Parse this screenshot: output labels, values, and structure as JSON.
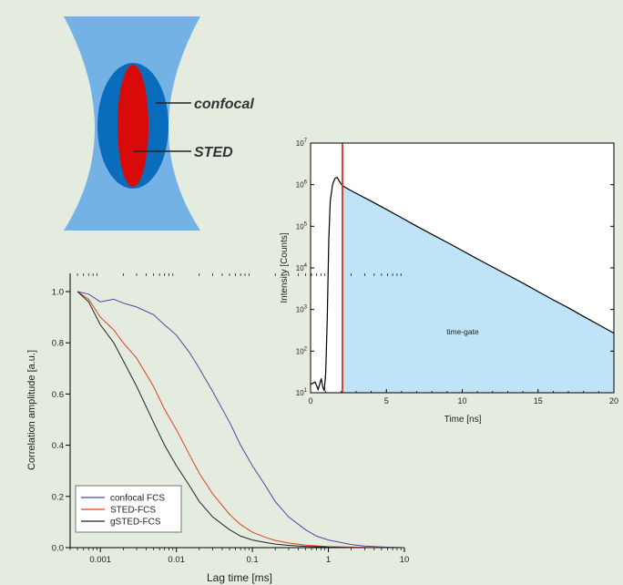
{
  "colors": {
    "background": "#e4ece0",
    "beam_outer": "#74b2e6",
    "beam_confocal": "#0a6cbc",
    "beam_sted": "#d80a0a",
    "gate_fill": "#bfe3f7",
    "gate_line": "#e0301e"
  },
  "diagram": {
    "labels": {
      "confocal": "confocal",
      "sted": "STED"
    }
  },
  "chart_data": [
    {
      "type": "area",
      "title": "",
      "xlabel": "Time [ns]",
      "ylabel": "Intensity [Counts]",
      "xlim": [
        0,
        20
      ],
      "ylim": [
        10,
        10000000
      ],
      "y_scale": "log",
      "x_ticks": [
        "0",
        "5",
        "10",
        "15",
        "20"
      ],
      "y_ticks": [
        {
          "base": "10",
          "exp": "1"
        },
        {
          "base": "10",
          "exp": "2"
        },
        {
          "base": "10",
          "exp": "3"
        },
        {
          "base": "10",
          "exp": "4"
        },
        {
          "base": "10",
          "exp": "5"
        },
        {
          "base": "10",
          "exp": "6"
        },
        {
          "base": "10",
          "exp": "7"
        }
      ],
      "annotation": "time-gate",
      "gate_start": 2.1,
      "gate_color": "#e0301e",
      "series": [
        {
          "color": "#000000",
          "x": [
            0,
            0.3,
            0.5,
            0.7,
            0.8,
            0.9,
            1.0,
            1.1,
            1.2,
            1.3,
            1.45,
            1.6,
            1.75,
            1.9,
            2.05,
            2.2,
            2.5,
            3,
            4,
            5,
            6,
            7,
            8,
            9,
            10,
            11,
            12,
            13,
            14,
            15,
            16,
            17,
            18,
            19,
            20
          ],
          "y": [
            16,
            18,
            12,
            22,
            14,
            11,
            30,
            600,
            50000,
            400000,
            1000000,
            1400000,
            1500000,
            1200000,
            1000000,
            900000,
            780000,
            620000,
            400000,
            255000,
            160000,
            100000,
            64000,
            41000,
            26000,
            16500,
            10500,
            6700,
            4300,
            2700,
            1700,
            1100,
            680,
            430,
            270
          ]
        }
      ],
      "grid": false,
      "legend": "none"
    },
    {
      "type": "line",
      "title": "",
      "xlabel": "Lag time [ms]",
      "ylabel": "Correlation amplitude [a.u.]",
      "x_scale": "log",
      "xlim": [
        0.0004,
        10
      ],
      "ylim": [
        0,
        1.0
      ],
      "x_ticks": [
        "0.001",
        "0.01",
        "0.1",
        "1",
        "10"
      ],
      "y_ticks": [
        "0.0",
        "0.2",
        "0.4",
        "0.6",
        "0.8",
        "1.0"
      ],
      "legend": "bottom-left",
      "grid": false,
      "series": [
        {
          "name": "confocal FCS",
          "color": "#4a4aa0",
          "x": [
            0.0005,
            0.0007,
            0.001,
            0.0015,
            0.002,
            0.003,
            0.005,
            0.007,
            0.01,
            0.015,
            0.02,
            0.03,
            0.05,
            0.07,
            0.1,
            0.15,
            0.2,
            0.3,
            0.5,
            0.7,
            1,
            2,
            3,
            5,
            10
          ],
          "y": [
            1.0,
            0.99,
            0.96,
            0.97,
            0.955,
            0.94,
            0.91,
            0.87,
            0.83,
            0.76,
            0.7,
            0.61,
            0.49,
            0.4,
            0.32,
            0.24,
            0.18,
            0.12,
            0.07,
            0.045,
            0.03,
            0.012,
            0.006,
            0.003,
            0.0
          ]
        },
        {
          "name": "STED-FCS",
          "color": "#e0401e",
          "x": [
            0.0005,
            0.0007,
            0.001,
            0.0015,
            0.002,
            0.003,
            0.005,
            0.007,
            0.01,
            0.015,
            0.02,
            0.03,
            0.05,
            0.07,
            0.1,
            0.15,
            0.2,
            0.3,
            0.5,
            1,
            2,
            5,
            10
          ],
          "y": [
            1.0,
            0.97,
            0.9,
            0.85,
            0.8,
            0.74,
            0.63,
            0.54,
            0.46,
            0.36,
            0.29,
            0.21,
            0.13,
            0.09,
            0.06,
            0.04,
            0.028,
            0.018,
            0.01,
            0.004,
            0.002,
            0.0,
            0.0
          ]
        },
        {
          "name": "gSTED-FCS",
          "color": "#222222",
          "x": [
            0.0005,
            0.0007,
            0.001,
            0.0015,
            0.002,
            0.003,
            0.005,
            0.007,
            0.01,
            0.015,
            0.02,
            0.03,
            0.05,
            0.07,
            0.1,
            0.15,
            0.2,
            0.3,
            0.5,
            1,
            2,
            5,
            10
          ],
          "y": [
            1.0,
            0.96,
            0.87,
            0.8,
            0.73,
            0.63,
            0.49,
            0.4,
            0.32,
            0.24,
            0.18,
            0.12,
            0.07,
            0.045,
            0.03,
            0.02,
            0.014,
            0.009,
            0.005,
            0.002,
            0.0,
            0.0,
            0.0
          ]
        }
      ]
    }
  ]
}
